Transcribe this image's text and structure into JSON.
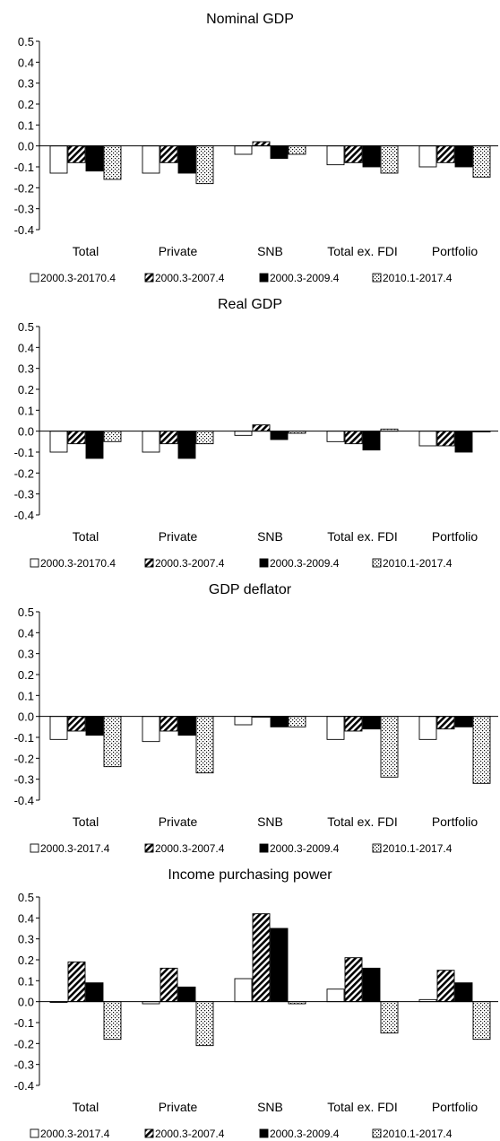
{
  "chart_data": [
    {
      "type": "bar",
      "title": "Nominal GDP",
      "categories": [
        "Total",
        "Private",
        "SNB",
        "Total ex. FDI",
        "Portfolio"
      ],
      "ylim": [
        -0.4,
        0.5
      ],
      "yticks": [
        "0.5",
        "0.4",
        "0.3",
        "0.2",
        "0.1",
        "0.0",
        "-0.1",
        "-0.2",
        "-0.3",
        "-0.4"
      ],
      "legend_position": "bottom",
      "grid": false,
      "series": [
        {
          "name": "2000.3-20170.4",
          "pattern": "white",
          "values": [
            -0.13,
            -0.13,
            -0.04,
            -0.09,
            -0.1
          ]
        },
        {
          "name": "2000.3-2007.4",
          "pattern": "diagonal",
          "values": [
            -0.08,
            -0.08,
            0.02,
            -0.08,
            -0.08
          ]
        },
        {
          "name": "2000.3-2009.4",
          "pattern": "black",
          "values": [
            -0.12,
            -0.13,
            -0.06,
            -0.1,
            -0.1
          ]
        },
        {
          "name": "2010.1-2017.4",
          "pattern": "dotted",
          "values": [
            -0.16,
            -0.18,
            -0.04,
            -0.13,
            -0.15
          ]
        }
      ]
    },
    {
      "type": "bar",
      "title": "Real GDP",
      "categories": [
        "Total",
        "Private",
        "SNB",
        "Total ex. FDI",
        "Portfolio"
      ],
      "ylim": [
        -0.4,
        0.5
      ],
      "yticks": [
        "0.5",
        "0.4",
        "0.3",
        "0.2",
        "0.1",
        "0.0",
        "-0.1",
        "-0.2",
        "-0.3",
        "-0.4"
      ],
      "legend_position": "bottom",
      "grid": false,
      "series": [
        {
          "name": "2000.3-20170.4",
          "pattern": "white",
          "values": [
            -0.1,
            -0.1,
            -0.02,
            -0.05,
            -0.07
          ]
        },
        {
          "name": "2000.3-2007.4",
          "pattern": "diagonal",
          "values": [
            -0.06,
            -0.06,
            0.03,
            -0.06,
            -0.07
          ]
        },
        {
          "name": "2000.3-2009.4",
          "pattern": "black",
          "values": [
            -0.13,
            -0.13,
            -0.04,
            -0.09,
            -0.1
          ]
        },
        {
          "name": "2010.1-2017.4",
          "pattern": "dotted",
          "values": [
            -0.05,
            -0.06,
            -0.01,
            0.01,
            0.0
          ]
        }
      ]
    },
    {
      "type": "bar",
      "title": "GDP deflator",
      "categories": [
        "Total",
        "Private",
        "SNB",
        "Total ex. FDI",
        "Portfolio"
      ],
      "ylim": [
        -0.4,
        0.5
      ],
      "yticks": [
        "0.5",
        "0.4",
        "0.3",
        "0.2",
        "0.1",
        "0.0",
        "-0.1",
        "-0.2",
        "-0.3",
        "-0.4"
      ],
      "legend_position": "bottom",
      "grid": false,
      "series": [
        {
          "name": "2000.3-2017.4",
          "pattern": "white",
          "values": [
            -0.11,
            -0.12,
            -0.04,
            -0.11,
            -0.11
          ]
        },
        {
          "name": "2000.3-2007.4",
          "pattern": "diagonal",
          "values": [
            -0.07,
            -0.07,
            0.0,
            -0.07,
            -0.06
          ]
        },
        {
          "name": "2000.3-2009.4",
          "pattern": "black",
          "values": [
            -0.09,
            -0.09,
            -0.05,
            -0.06,
            -0.05
          ]
        },
        {
          "name": "2010.1-2017.4",
          "pattern": "dotted",
          "values": [
            -0.24,
            -0.27,
            -0.05,
            -0.29,
            -0.32
          ]
        }
      ]
    },
    {
      "type": "bar",
      "title": "Income purchasing power",
      "categories": [
        "Total",
        "Private",
        "SNB",
        "Total ex. FDI",
        "Portfolio"
      ],
      "ylim": [
        -0.4,
        0.5
      ],
      "yticks": [
        "0.5",
        "0.4",
        "0.3",
        "0.2",
        "0.1",
        "0.0",
        "-0.1",
        "-0.2",
        "-0.3",
        "-0.4"
      ],
      "legend_position": "bottom",
      "grid": false,
      "series": [
        {
          "name": "2000.3-2017.4",
          "pattern": "white",
          "values": [
            0.0,
            -0.01,
            0.11,
            0.06,
            0.01
          ]
        },
        {
          "name": "2000.3-2007.4",
          "pattern": "diagonal",
          "values": [
            0.19,
            0.16,
            0.42,
            0.21,
            0.15
          ]
        },
        {
          "name": "2000.3-2009.4",
          "pattern": "black",
          "values": [
            0.09,
            0.07,
            0.35,
            0.16,
            0.09
          ]
        },
        {
          "name": "2010.1-2017.4",
          "pattern": "dotted",
          "values": [
            -0.18,
            -0.21,
            -0.01,
            -0.15,
            -0.18
          ]
        }
      ]
    }
  ]
}
